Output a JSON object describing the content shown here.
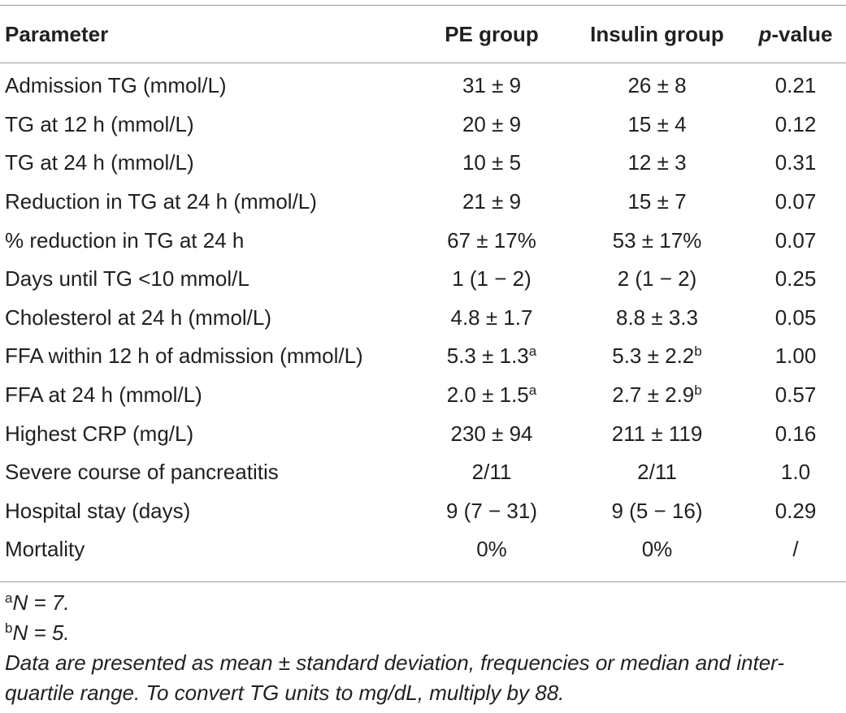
{
  "table": {
    "headers": {
      "parameter": "Parameter",
      "pe_group": "PE group",
      "insulin_group": "Insulin group",
      "p_letter": "p",
      "p_rest": "-value"
    },
    "rows": [
      {
        "parameter": "Admission TG (mmol/L)",
        "pe": "31 ± 9",
        "pe_sup": "",
        "insulin": "26 ± 8",
        "insulin_sup": "",
        "p": "0.21"
      },
      {
        "parameter": "TG at 12 h (mmol/L)",
        "pe": "20 ± 9",
        "pe_sup": "",
        "insulin": "15 ± 4",
        "insulin_sup": "",
        "p": "0.12"
      },
      {
        "parameter": "TG at 24 h (mmol/L)",
        "pe": "10 ± 5",
        "pe_sup": "",
        "insulin": "12 ± 3",
        "insulin_sup": "",
        "p": "0.31"
      },
      {
        "parameter": "Reduction in TG at 24 h (mmol/L)",
        "pe": "21 ± 9",
        "pe_sup": "",
        "insulin": "15 ± 7",
        "insulin_sup": "",
        "p": "0.07"
      },
      {
        "parameter": "% reduction in TG at 24 h",
        "pe": "67 ± 17%",
        "pe_sup": "",
        "insulin": "53 ± 17%",
        "insulin_sup": "",
        "p": "0.07"
      },
      {
        "parameter": "Days until TG <10 mmol/L",
        "pe": "1 (1 − 2)",
        "pe_sup": "",
        "insulin": "2 (1 − 2)",
        "insulin_sup": "",
        "p": "0.25"
      },
      {
        "parameter": "Cholesterol at 24 h (mmol/L)",
        "pe": "4.8 ± 1.7",
        "pe_sup": "",
        "insulin": "8.8 ± 3.3",
        "insulin_sup": "",
        "p": "0.05"
      },
      {
        "parameter": "FFA within 12 h of admission (mmol/L)",
        "pe": "5.3 ± 1.3",
        "pe_sup": "a",
        "insulin": "5.3 ± 2.2",
        "insulin_sup": "b",
        "p": "1.00"
      },
      {
        "parameter": "FFA at 24 h (mmol/L)",
        "pe": "2.0 ± 1.5",
        "pe_sup": "a",
        "insulin": "2.7 ± 2.9",
        "insulin_sup": "b",
        "p": "0.57"
      },
      {
        "parameter": "Highest CRP (mg/L)",
        "pe": "230 ± 94",
        "pe_sup": "",
        "insulin": "211 ± 119",
        "insulin_sup": "",
        "p": "0.16"
      },
      {
        "parameter": "Severe course of pancreatitis",
        "pe": "2/11",
        "pe_sup": "",
        "insulin": "2/11",
        "insulin_sup": "",
        "p": "1.0"
      },
      {
        "parameter": "Hospital stay (days)",
        "pe": "9 (7 − 31)",
        "pe_sup": "",
        "insulin": "9 (5 − 16)",
        "insulin_sup": "",
        "p": "0.29"
      },
      {
        "parameter": "Mortality",
        "pe": "0%",
        "pe_sup": "",
        "insulin": "0%",
        "insulin_sup": "",
        "p": "/"
      }
    ]
  },
  "footnotes": {
    "a_marker": "a",
    "a_text": "N = 7.",
    "b_marker": "b",
    "b_text": "N = 5.",
    "general": "Data are presented as mean ± standard deviation, frequencies or median and inter-quartile range. To convert TG units to mg/dL, multiply by 88."
  }
}
